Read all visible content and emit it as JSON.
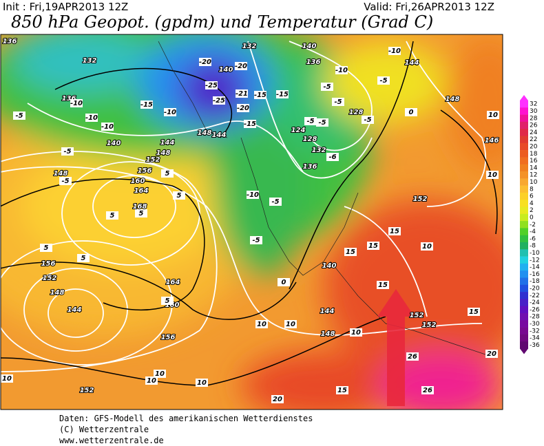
{
  "header": {
    "init": "Init : Fri,19APR2013 12Z",
    "valid": "Valid: Fri,26APR2013 12Z",
    "title": "850 hPa Geopot. (gpdm) und Temperatur (Grad C)"
  },
  "map": {
    "geopotential_labels": [
      136,
      132,
      136,
      140,
      148,
      152,
      156,
      160,
      164,
      168,
      156,
      152,
      148,
      144,
      164,
      160,
      156,
      152,
      148,
      144,
      148,
      144,
      132,
      140,
      140,
      136,
      128,
      124,
      128,
      132,
      136,
      144,
      148,
      146,
      152,
      140,
      144,
      148,
      152,
      152
    ],
    "temperature_labels": [
      -5,
      -10,
      -10,
      -10,
      -15,
      -10,
      -5,
      -5,
      5,
      5,
      5,
      5,
      5,
      5,
      -5,
      -10,
      -5,
      0,
      5,
      10,
      10,
      -15,
      -15,
      -20,
      -20,
      -25,
      -25,
      -21,
      -20,
      -15,
      -5,
      -5,
      -5,
      -5,
      -6,
      -10,
      -5,
      -5,
      -10,
      0,
      10,
      10,
      10,
      15,
      15,
      15,
      15,
      15,
      10,
      10,
      10,
      10,
      10,
      20,
      26,
      26,
      20,
      15
    ]
  },
  "colorbar": {
    "ticks": [
      32,
      30,
      28,
      26,
      24,
      22,
      20,
      18,
      16,
      14,
      12,
      10,
      8,
      6,
      4,
      2,
      0,
      -2,
      -4,
      -6,
      -8,
      -10,
      -12,
      -14,
      -16,
      -18,
      -20,
      -22,
      -24,
      -26,
      -28,
      -30,
      -32,
      -34,
      -36
    ],
    "colors": [
      "#ff30ff",
      "#ff10d0",
      "#f0109a",
      "#e0206a",
      "#e02848",
      "#e03a30",
      "#e84a28",
      "#ec5c20",
      "#f06e20",
      "#f08020",
      "#f49228",
      "#f8a830",
      "#fcbe30",
      "#fcd028",
      "#f8e020",
      "#e8ea20",
      "#c8ec20",
      "#90e020",
      "#50d028",
      "#30c040",
      "#20b060",
      "#20c0b0",
      "#20d0e0",
      "#20b0f0",
      "#2090f0",
      "#2070e8",
      "#2050e0",
      "#3030d0",
      "#4820c8",
      "#6010c0",
      "#7010b0",
      "#7808a0",
      "#780890",
      "#700880",
      "#600870"
    ]
  },
  "footer": {
    "lines": [
      "Daten: GFS-Modell des amerikanischen Wetterdienstes",
      "(C) Wetterzentrale",
      "www.wetterzentrale.de"
    ]
  }
}
